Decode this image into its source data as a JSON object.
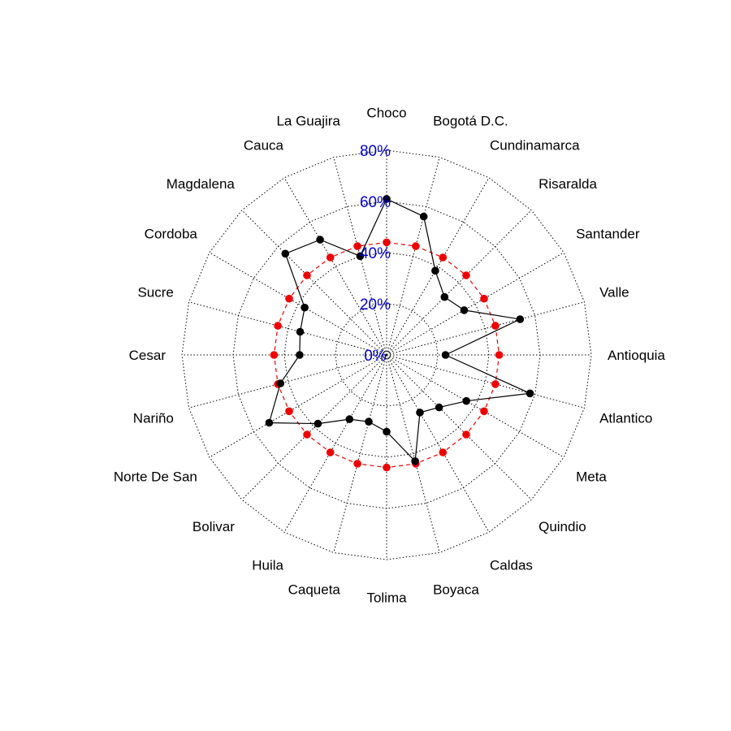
{
  "chart_data": {
    "type": "radar",
    "title": "",
    "categories": [
      "Choco",
      "Bogotá D.C.",
      "Cundinamarca",
      "Risaralda",
      "Santander",
      "Valle",
      "Antioquia",
      "Atlantico",
      "Meta",
      "Quindio",
      "Caldas",
      "Boyaca",
      "Tolima",
      "Caqueta",
      "Huila",
      "Bolivar",
      "Norte De San",
      "Nariño",
      "Cesar",
      "Sucre",
      "Cordoba",
      "Magdalena",
      "Cauca",
      "La Guajira"
    ],
    "radial_axis": {
      "min": 0,
      "max": 80,
      "ticks": [
        0,
        20,
        40,
        60,
        80
      ],
      "tick_labels": [
        "0%",
        "20%",
        "40%",
        "60%",
        "80%"
      ],
      "tick_color": "#0000CC"
    },
    "grid": {
      "visible": true,
      "style": "dotted",
      "color": "#000000"
    },
    "series": [
      {
        "values": [
          61,
          56,
          38,
          32,
          35,
          54,
          23,
          58,
          36,
          29,
          26,
          43,
          30,
          27,
          29,
          38,
          53,
          43,
          34,
          35,
          37,
          56,
          52,
          40
        ],
        "color": "#000000",
        "line_style": "solid"
      },
      {
        "values": [
          44,
          44,
          44,
          44,
          44,
          44,
          44,
          44,
          44,
          44,
          44,
          44,
          44,
          44,
          44,
          44,
          44,
          44,
          44,
          44,
          44,
          44,
          44,
          44
        ],
        "color": "#EE0000",
        "line_style": "dashed"
      }
    ]
  }
}
